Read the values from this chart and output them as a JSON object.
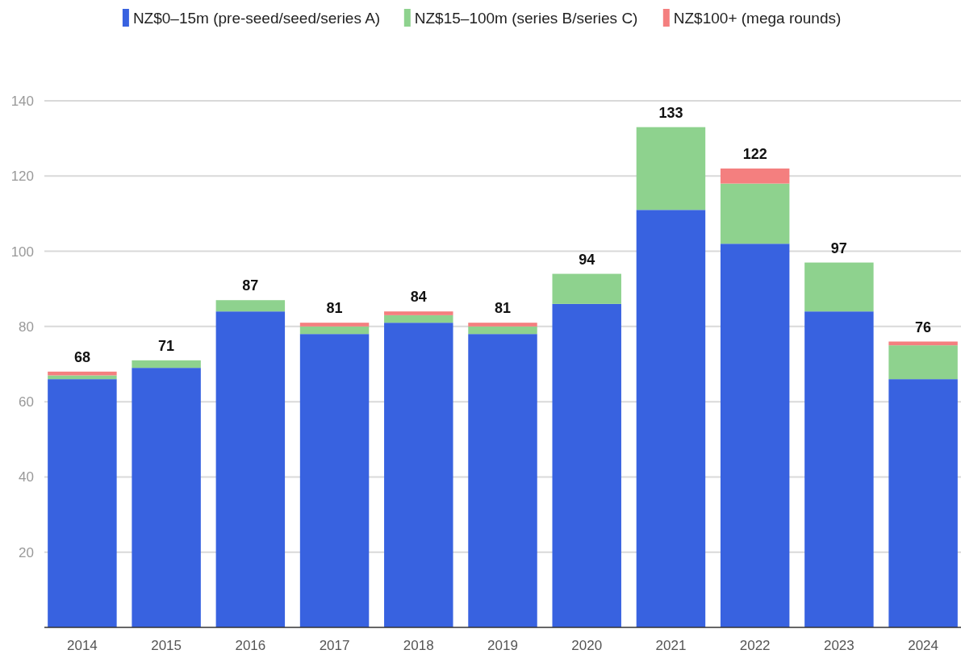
{
  "chart_data": {
    "type": "bar",
    "stacked": true,
    "categories": [
      "2014",
      "2015",
      "2016",
      "2017",
      "2018",
      "2019",
      "2020",
      "2021",
      "2022",
      "2023",
      "2024"
    ],
    "series": [
      {
        "name": "NZ$0–15m (pre-seed/seed/series A)",
        "color": "#3862e0",
        "values": [
          66,
          69,
          84,
          78,
          81,
          78,
          86,
          111,
          102,
          84,
          66
        ]
      },
      {
        "name": "NZ$15–100m (series B/series C)",
        "color": "#8ed28e",
        "values": [
          1,
          2,
          3,
          2,
          2,
          2,
          8,
          22,
          16,
          13,
          9
        ]
      },
      {
        "name": "NZ$100+ (mega rounds)",
        "color": "#f47f7f",
        "values": [
          1,
          0,
          0,
          1,
          1,
          1,
          0,
          0,
          4,
          0,
          1
        ]
      }
    ],
    "totals": [
      "68",
      "71",
      "87",
      "81",
      "84",
      "81",
      "94",
      "133",
      "122",
      "97",
      "76"
    ],
    "ylim": [
      0,
      140
    ],
    "yticks": [
      20,
      40,
      60,
      80,
      100,
      120,
      140
    ],
    "grid": "y",
    "legend": "top"
  }
}
